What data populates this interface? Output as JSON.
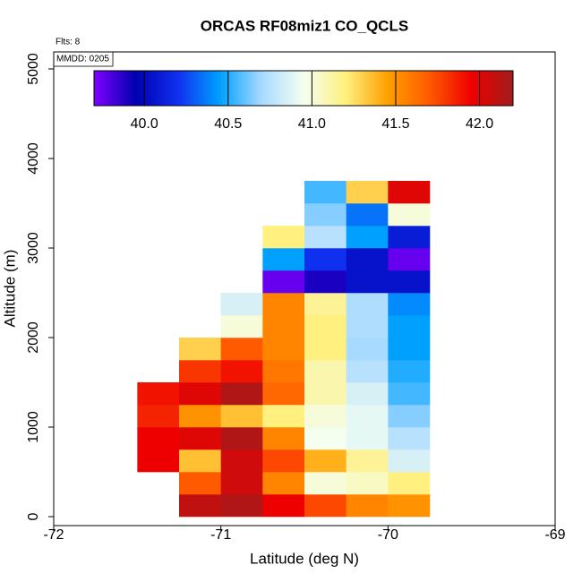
{
  "chart_data": {
    "type": "heatmap",
    "title": "ORCAS RF08miz1 CO_QCLS",
    "xlabel": "Latitude (deg N)",
    "ylabel": "Altitude (m)",
    "annotations": [
      "Flts: 8",
      "MMDD: 0205"
    ],
    "xlim": [
      -72,
      -69
    ],
    "xticks": [
      -72,
      -71,
      -70,
      -69
    ],
    "ylim": [
      -100,
      5190
    ],
    "yticks": [
      0,
      1000,
      2000,
      3000,
      4000,
      5000
    ],
    "x_edges": [
      -71.5,
      -71.25,
      -71,
      -70.75,
      -70.5,
      -70.25,
      -70,
      -69.75
    ],
    "y_edges": [
      0,
      250,
      500,
      750,
      1000,
      1250,
      1500,
      1750,
      2000,
      2250,
      2500,
      2750,
      3000,
      3250,
      3500,
      3750
    ],
    "values": [
      [
        null,
        42.1,
        42.15,
        41.95,
        41.75,
        41.55,
        41.5
      ],
      [
        null,
        41.7,
        42.05,
        41.55,
        41.0,
        41.05,
        41.2
      ],
      [
        41.95,
        41.35,
        42.05,
        41.75,
        41.4,
        41.15,
        40.85
      ],
      [
        41.95,
        42.0,
        42.15,
        41.55,
        40.95,
        40.9,
        40.75
      ],
      [
        41.85,
        41.5,
        41.35,
        41.2,
        41.0,
        40.9,
        40.65
      ],
      [
        41.9,
        42.0,
        42.15,
        41.65,
        41.1,
        40.85,
        40.55
      ],
      [
        null,
        41.8,
        41.9,
        41.6,
        41.1,
        40.75,
        40.5
      ],
      [
        null,
        41.3,
        41.7,
        41.55,
        41.2,
        40.7,
        40.45
      ],
      [
        null,
        null,
        41.0,
        41.55,
        41.2,
        40.72,
        40.45
      ],
      [
        null,
        null,
        40.85,
        41.55,
        41.15,
        40.72,
        40.4
      ],
      [
        null,
        null,
        null,
        39.75,
        39.9,
        40.05,
        40.05
      ],
      [
        null,
        null,
        null,
        40.45,
        40.2,
        40.05,
        39.75
      ],
      [
        null,
        null,
        null,
        41.2,
        40.75,
        40.45,
        40.1
      ],
      [
        null,
        null,
        null,
        null,
        40.65,
        40.35,
        41.0
      ],
      [
        null,
        null,
        null,
        null,
        40.55,
        41.3,
        42.0
      ]
    ],
    "colorbar": {
      "lim": [
        39.7,
        42.2
      ],
      "ticks": [
        {
          "value": 40,
          "label": "40.0"
        },
        {
          "value": 40.5,
          "label": "40.5"
        },
        {
          "value": 41,
          "label": "41.0"
        },
        {
          "value": 41.5,
          "label": "41.5"
        },
        {
          "value": 42,
          "label": "42.0"
        }
      ],
      "colors": [
        "#8000ff",
        "#0000b0",
        "#1030f0",
        "#00a0ff",
        "#a8daff",
        "#f4fff0",
        "#fff080",
        "#ffa000",
        "#ff5a00",
        "#ef0000",
        "#a01c1c"
      ]
    }
  }
}
